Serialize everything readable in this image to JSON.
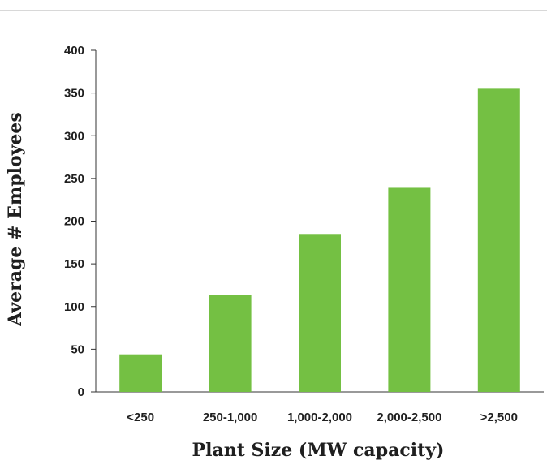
{
  "chart_data": {
    "type": "bar",
    "categories": [
      "<250",
      "250-1,000",
      "1,000-2,000",
      "2,000-2,500",
      ">2,500"
    ],
    "values": [
      44,
      114,
      185,
      239,
      355
    ],
    "title": "",
    "xlabel": "Plant Size (MW capacity)",
    "ylabel": "Average # Employees",
    "ylim": [
      0,
      400
    ],
    "yticks": [
      0,
      50,
      100,
      150,
      200,
      250,
      300,
      350,
      400
    ],
    "grid": false,
    "legend": "none",
    "bar_color": "#74c043",
    "axis_color": "#333333",
    "rule_color": "#b0b0b0"
  }
}
